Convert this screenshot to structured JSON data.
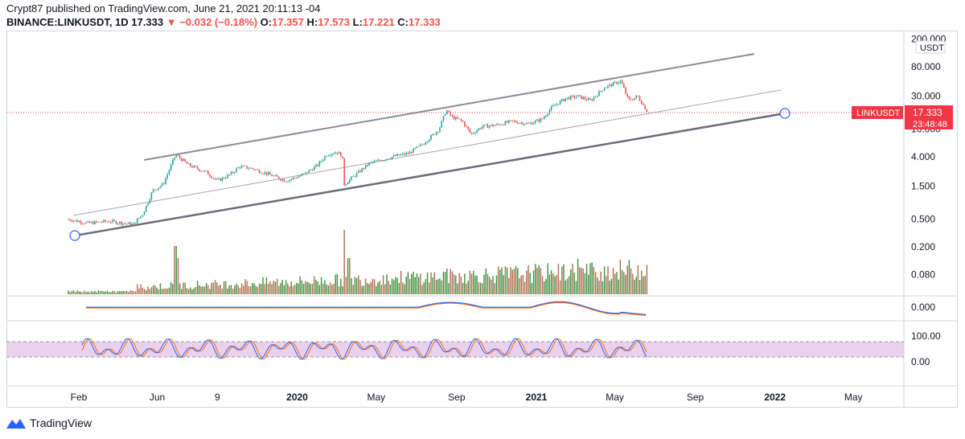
{
  "header": {
    "line1": "Crypt87 published on TradingView.com, June 21, 2021 20:11:13 -04",
    "symbol": "BINANCE:LINKUSDT, 1D",
    "last": "17.333",
    "change_arrow": "▼",
    "change": "−0.032 (−0.18%)",
    "o_label": "O:",
    "o": "17.357",
    "h_label": "H:",
    "h": "17.573",
    "l_label": "L:",
    "l": "17.221",
    "c_label": "C:",
    "c": "17.333"
  },
  "chart_data": {
    "type": "line",
    "scale": "log",
    "price_ticks": [
      "200.000",
      "80.000",
      "30.000",
      "10.000",
      "4.000",
      "1.500",
      "0.500",
      "0.200",
      "0.080"
    ],
    "currency": "USDT",
    "x_ticks": [
      "Feb",
      "Jun",
      "9",
      "2020",
      "May",
      "Sep",
      "2021",
      "May",
      "Sep",
      "2022",
      "May"
    ],
    "x_tick_dates": [
      "2019-02-01",
      "2019-06-01",
      "2019-09-01",
      "2020-01-01",
      "2020-05-01",
      "2020-09-01",
      "2021-01-01",
      "2021-05-01",
      "2021-09-01",
      "2022-01-01",
      "2022-05-01"
    ],
    "price_series": [
      {
        "date": "2019-01-16",
        "price": 0.5
      },
      {
        "date": "2019-02-15",
        "price": 0.44
      },
      {
        "date": "2019-03-20",
        "price": 0.47
      },
      {
        "date": "2019-04-25",
        "price": 0.42
      },
      {
        "date": "2019-05-10",
        "price": 0.6
      },
      {
        "date": "2019-05-25",
        "price": 1.3
      },
      {
        "date": "2019-06-10",
        "price": 1.6
      },
      {
        "date": "2019-06-29",
        "price": 4.3
      },
      {
        "date": "2019-07-20",
        "price": 3.0
      },
      {
        "date": "2019-08-15",
        "price": 2.4
      },
      {
        "date": "2019-09-01",
        "price": 1.8
      },
      {
        "date": "2019-09-20",
        "price": 2.2
      },
      {
        "date": "2019-10-05",
        "price": 2.9
      },
      {
        "date": "2019-10-25",
        "price": 2.7
      },
      {
        "date": "2019-11-15",
        "price": 2.3
      },
      {
        "date": "2019-12-15",
        "price": 1.8
      },
      {
        "date": "2020-01-10",
        "price": 2.2
      },
      {
        "date": "2020-02-01",
        "price": 3.0
      },
      {
        "date": "2020-02-15",
        "price": 4.3
      },
      {
        "date": "2020-03-01",
        "price": 4.7
      },
      {
        "date": "2020-03-10",
        "price": 4.2
      },
      {
        "date": "2020-03-13",
        "price": 1.6
      },
      {
        "date": "2020-03-25",
        "price": 2.0
      },
      {
        "date": "2020-04-20",
        "price": 3.2
      },
      {
        "date": "2020-05-25",
        "price": 4.0
      },
      {
        "date": "2020-06-20",
        "price": 4.5
      },
      {
        "date": "2020-07-10",
        "price": 6.0
      },
      {
        "date": "2020-07-25",
        "price": 8.0
      },
      {
        "date": "2020-08-05",
        "price": 10.0
      },
      {
        "date": "2020-08-16",
        "price": 19.0
      },
      {
        "date": "2020-08-25",
        "price": 15.0
      },
      {
        "date": "2020-09-10",
        "price": 13.0
      },
      {
        "date": "2020-09-23",
        "price": 8.5
      },
      {
        "date": "2020-10-10",
        "price": 11.0
      },
      {
        "date": "2020-11-01",
        "price": 11.5
      },
      {
        "date": "2020-11-25",
        "price": 13.0
      },
      {
        "date": "2020-12-20",
        "price": 12.0
      },
      {
        "date": "2021-01-10",
        "price": 14.0
      },
      {
        "date": "2021-01-25",
        "price": 21.0
      },
      {
        "date": "2021-02-15",
        "price": 28.0
      },
      {
        "date": "2021-03-05",
        "price": 30.0
      },
      {
        "date": "2021-03-25",
        "price": 26.0
      },
      {
        "date": "2021-04-15",
        "price": 40.0
      },
      {
        "date": "2021-05-10",
        "price": 50.0
      },
      {
        "date": "2021-05-22",
        "price": 26.0
      },
      {
        "date": "2021-06-05",
        "price": 30.0
      },
      {
        "date": "2021-06-21",
        "price": 17.333
      }
    ],
    "last_label": {
      "symbol": "LINKUSDT",
      "price": "17.333",
      "countdown": "23:48:48"
    },
    "macd": {
      "tick": "0.000"
    },
    "stoch_rsi": {
      "ticks": [
        "100.00",
        "0.00"
      ]
    },
    "colors": {
      "up": "#26a69a",
      "down": "#ef5350",
      "volume_up": "#1b7a1b",
      "volume_down": "#a0522d",
      "channel": "#787b86",
      "stoch_band": "#e1bee7",
      "last_price": "#f23645"
    }
  },
  "footer": {
    "brand": "TradingView"
  }
}
